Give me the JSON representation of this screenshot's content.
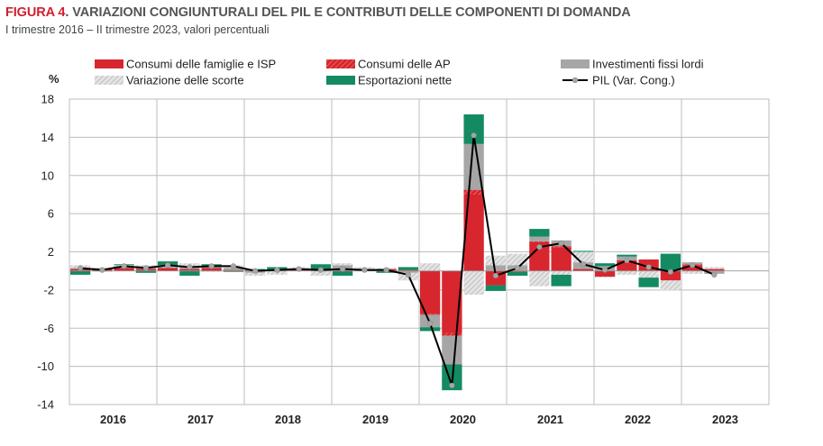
{
  "header": {
    "figure_label": "FIGURA 4",
    "title_rest": ". VARIAZIONI CONGIUNTURALI DEL PIL E CONTRIBUTI DELLE COMPONENTI DI DOMANDA",
    "subtitle": "I trimestre 2016 – II trimestre 2023, valori percentuali"
  },
  "colors": {
    "consumi_famiglie": "#d7262e",
    "consumi_ap": "#d7262e",
    "investimenti": "#a6a6a6",
    "scorte": "#c8c8c8",
    "esportazioni": "#138a62",
    "pil_line": "#000000",
    "pil_marker": "#a6a6a6"
  },
  "chart_data": {
    "type": "bar",
    "stacked": true,
    "ylabel": "%",
    "ylim": [
      -14,
      18
    ],
    "yticks": [
      18,
      14,
      10,
      6,
      2,
      -2,
      -6,
      -10,
      -14
    ],
    "grid": true,
    "legend_position": "top",
    "x": [
      "2016 T1",
      "2016 T2",
      "2016 T3",
      "2016 T4",
      "2017 T1",
      "2017 T2",
      "2017 T3",
      "2017 T4",
      "2018 T1",
      "2018 T2",
      "2018 T3",
      "2018 T4",
      "2019 T1",
      "2019 T2",
      "2019 T3",
      "2019 T4",
      "2020 T1",
      "2020 T2",
      "2020 T3",
      "2020 T4",
      "2021 T1",
      "2021 T2",
      "2021 T3",
      "2021 T4",
      "2022 T1",
      "2022 T2",
      "2022 T3",
      "2022 T4",
      "2023 T1",
      "2023 T2"
    ],
    "year_labels": [
      "2016",
      "2017",
      "2018",
      "2019",
      "2020",
      "2021",
      "2022",
      "2023"
    ],
    "series": [
      {
        "name": "Consumi delle famiglie e ISP",
        "key": "consumi_famiglie",
        "values": [
          0.2,
          0.2,
          0.3,
          0.2,
          0.3,
          0.2,
          0.3,
          0.1,
          0.1,
          0.1,
          0.2,
          0.1,
          0.1,
          0.1,
          0.2,
          0.1,
          -4.5,
          -6.5,
          8.0,
          -1.5,
          -0.1,
          3.0,
          2.5,
          0.2,
          -0.6,
          1.1,
          1.2,
          -1.0,
          0.6,
          0.2
        ]
      },
      {
        "name": "Consumi delle AP",
        "key": "consumi_ap",
        "values": [
          0.0,
          0.0,
          0.0,
          0.0,
          0.0,
          0.0,
          0.0,
          0.0,
          0.0,
          0.0,
          0.0,
          0.0,
          0.0,
          0.0,
          0.0,
          0.0,
          -0.1,
          -0.3,
          0.5,
          0.0,
          0.0,
          0.1,
          0.1,
          0.0,
          0.0,
          0.0,
          0.0,
          0.0,
          0.1,
          0.0
        ]
      },
      {
        "name": "Investimenti fissi lordi",
        "key": "investimenti",
        "values": [
          0.1,
          0.1,
          0.2,
          0.3,
          0.1,
          0.3,
          0.2,
          0.2,
          -0.2,
          0.0,
          0.0,
          0.1,
          0.5,
          0.0,
          0.0,
          -0.2,
          -1.3,
          -3.0,
          4.8,
          0.6,
          0.6,
          0.5,
          0.6,
          0.7,
          0.5,
          0.4,
          0.0,
          0.0,
          0.2,
          -0.3
        ]
      },
      {
        "name": "Variazione delle scorte",
        "key": "scorte",
        "values": [
          0.3,
          -0.1,
          0.1,
          0.1,
          0.2,
          0.3,
          -0.1,
          0.3,
          -0.3,
          -0.4,
          0.2,
          -0.5,
          0.2,
          0.3,
          0.1,
          -0.8,
          0.8,
          0.0,
          -2.5,
          1.0,
          1.2,
          -1.6,
          -0.4,
          1.1,
          -0.1,
          -0.4,
          -0.7,
          -1.0,
          -0.3,
          0.2
        ]
      },
      {
        "name": "Esportazioni nette",
        "key": "esportazioni",
        "values": [
          -0.4,
          0.0,
          0.1,
          -0.2,
          0.4,
          -0.5,
          0.2,
          -0.1,
          0.1,
          0.3,
          0.0,
          0.5,
          -0.5,
          0.0,
          -0.2,
          0.3,
          -0.4,
          -2.7,
          3.1,
          -0.6,
          -0.4,
          0.8,
          -1.2,
          0.1,
          0.3,
          0.2,
          -1.0,
          1.8,
          0.0,
          0.0
        ]
      }
    ],
    "line": {
      "name": "PIL (Var. Cong.)",
      "key": "pil_line",
      "values": [
        0.3,
        0.1,
        0.5,
        0.3,
        0.6,
        0.4,
        0.5,
        0.5,
        0.0,
        0.1,
        0.2,
        0.1,
        0.2,
        0.1,
        0.1,
        -0.4,
        -5.5,
        -12.0,
        14.2,
        -0.5,
        0.3,
        2.5,
        2.9,
        0.7,
        0.1,
        1.1,
        0.4,
        -0.1,
        0.6,
        -0.4
      ]
    }
  }
}
